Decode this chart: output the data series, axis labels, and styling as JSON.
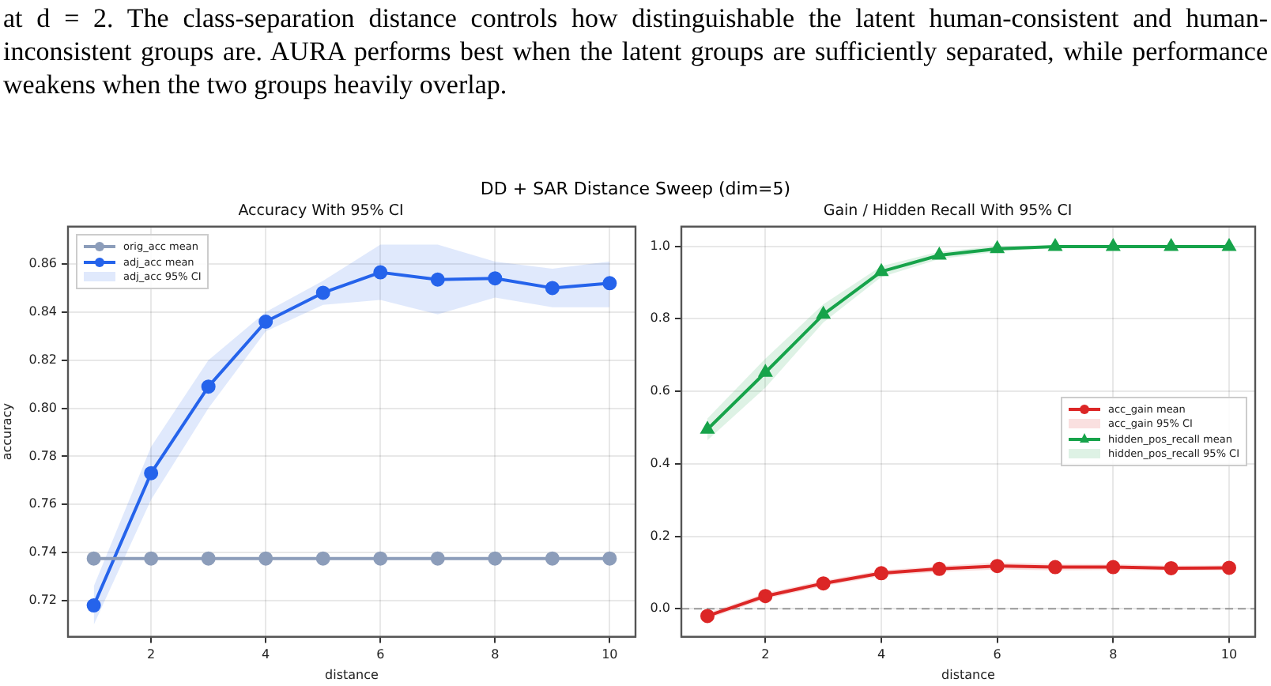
{
  "chart_data": [
    {
      "type": "line",
      "title": "Accuracy With 95% CI",
      "xlabel": "distance",
      "ylabel": "accuracy",
      "annotations": [
        "at d = 2. The class-separation distance controls how distinguishable the latent human-consistent and human-inconsistent groups are. AURA performs best when the latent groups are sufficiently separated, while performance weakens when the two groups heavily overlap.",
        "DD + SAR Distance Sweep (dim=5)",
        "adj_acc 95% CI"
      ],
      "x": [
        1,
        2,
        3,
        4,
        5,
        6,
        7,
        8,
        9,
        10
      ],
      "series": [
        {
          "name": "orig_acc mean",
          "color": "#8c9dba",
          "marker": "circle",
          "values": [
            0.7375,
            0.7375,
            0.7375,
            0.7375,
            0.7375,
            0.7375,
            0.7375,
            0.7375,
            0.7375,
            0.7375
          ]
        },
        {
          "name": "adj_acc mean",
          "color": "#2563eb",
          "marker": "circle",
          "values": [
            0.718,
            0.773,
            0.809,
            0.836,
            0.848,
            0.8565,
            0.8535,
            0.854,
            0.85,
            0.852
          ],
          "lower": [
            0.71,
            0.762,
            0.8,
            0.832,
            0.843,
            0.845,
            0.839,
            0.846,
            0.842,
            0.842
          ],
          "upper": [
            0.726,
            0.784,
            0.82,
            0.84,
            0.853,
            0.868,
            0.868,
            0.861,
            0.858,
            0.861
          ]
        }
      ],
      "xlim": [
        0.55,
        10.45
      ],
      "xticks": [
        2,
        4,
        6,
        8,
        10
      ],
      "ylim": [
        0.705,
        0.8755
      ],
      "yticks": [
        0.72,
        0.74,
        0.76,
        0.78,
        {
          "value": 0.8,
          "label": "0.80"
        },
        0.82,
        0.84,
        0.86
      ],
      "grid": true,
      "legend": "top left",
      "line_style": "solid"
    },
    {
      "type": "line",
      "title": "Gain / Hidden Recall With 95% CI",
      "xlabel": "distance",
      "annotations": [
        "acc_gain 95% CI",
        "hidden_pos_recall 95% CI"
      ],
      "x": [
        1,
        2,
        3,
        4,
        5,
        6,
        7,
        8,
        9,
        10
      ],
      "series": [
        {
          "name": "acc_gain mean",
          "color": "#dc2626",
          "marker": "circle",
          "values": [
            -0.02,
            0.035,
            0.07,
            0.098,
            0.11,
            0.118,
            0.115,
            0.115,
            0.112,
            0.113
          ],
          "lower": [
            -0.028,
            0.027,
            0.062,
            0.09,
            0.102,
            0.108,
            0.106,
            0.107,
            0.105,
            0.106
          ],
          "upper": [
            -0.012,
            0.043,
            0.078,
            0.106,
            0.118,
            0.128,
            0.124,
            0.123,
            0.119,
            0.12
          ]
        },
        {
          "name": "hidden_pos_recall mean",
          "color": "#16a34a",
          "marker": "triangle",
          "values": [
            0.495,
            0.652,
            0.812,
            0.93,
            0.975,
            0.993,
            0.999,
            0.999,
            0.999,
            0.999
          ],
          "lower": [
            0.465,
            0.61,
            0.79,
            0.915,
            0.965,
            0.985,
            0.995,
            0.995,
            0.995,
            0.995
          ],
          "upper": [
            0.525,
            0.69,
            0.84,
            0.945,
            0.985,
            1.0,
            1.0,
            1.0,
            1.0,
            1.0
          ]
        }
      ],
      "xlim": [
        0.55,
        10.45
      ],
      "xticks": [
        2,
        4,
        6,
        8,
        10
      ],
      "ylim": [
        -0.077,
        1.054
      ],
      "yticks": [
        {
          "value": 0,
          "label": "0.0"
        },
        {
          "value": 0.2,
          "label": "0.2"
        },
        {
          "value": 0.4,
          "label": "0.4"
        },
        {
          "value": 0.6,
          "label": "0.6"
        },
        {
          "value": 0.8,
          "label": "0.8"
        },
        {
          "value": 1,
          "label": "1.0"
        }
      ],
      "ref_lines": [
        {
          "axis": "y",
          "value": 0,
          "color": "#999999",
          "line_style": "dashed"
        }
      ],
      "grid": true,
      "legend": "right",
      "line_style": "solid"
    }
  ]
}
